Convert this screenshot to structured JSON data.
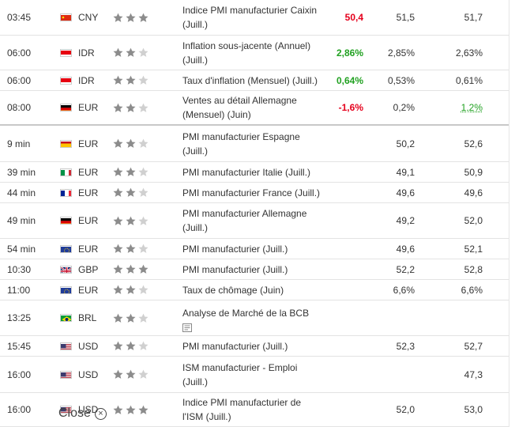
{
  "rows": [
    {
      "time": "03:45",
      "flag": "cn",
      "currency": "CNY",
      "stars": 3,
      "event": [
        "Indice PMI manufacturier Caixin",
        "(Juill.)"
      ],
      "actual": "50,4",
      "actual_color": "red",
      "forecast": "51,5",
      "previous": "51,7",
      "height": 44
    },
    {
      "time": "06:00",
      "flag": "id",
      "currency": "IDR",
      "stars": 2,
      "event": [
        "Inflation sous-jacente (Annuel)",
        "(Juill.)"
      ],
      "actual": "2,86%",
      "actual_color": "green",
      "forecast": "2,85%",
      "previous": "2,63%",
      "height": 43
    },
    {
      "time": "06:00",
      "flag": "id",
      "currency": "IDR",
      "stars": 2,
      "event": [
        "Taux d'inflation (Mensuel) (Juill.)"
      ],
      "actual": "0,64%",
      "actual_color": "green",
      "forecast": "0,53%",
      "previous": "0,61%",
      "height": 25
    },
    {
      "time": "08:00",
      "flag": "de",
      "currency": "EUR",
      "stars": 2,
      "event": [
        "Ventes au détail Allemagne",
        "(Mensuel) (Juin)"
      ],
      "actual": "-1,6%",
      "actual_color": "red",
      "forecast": "0,2%",
      "previous": "1,2%",
      "previous_color": "green",
      "height": 42,
      "divider": true
    },
    {
      "time": "9 min",
      "flag": "es",
      "currency": "EUR",
      "stars": 2,
      "event": [
        "PMI manufacturier Espagne",
        "(Juill.)"
      ],
      "actual": "",
      "forecast": "50,2",
      "previous": "52,6",
      "height": 45
    },
    {
      "time": "39 min",
      "flag": "it",
      "currency": "EUR",
      "stars": 2,
      "event": [
        "PMI manufacturier Italie (Juill.)"
      ],
      "actual": "",
      "forecast": "49,1",
      "previous": "50,9",
      "height": 25
    },
    {
      "time": "44 min",
      "flag": "fr",
      "currency": "EUR",
      "stars": 2,
      "event": [
        "PMI manufacturier France (Juill.)"
      ],
      "actual": "",
      "forecast": "49,6",
      "previous": "49,6",
      "height": 25
    },
    {
      "time": "49 min",
      "flag": "de",
      "currency": "EUR",
      "stars": 2,
      "event": [
        "PMI manufacturier Allemagne",
        "(Juill.)"
      ],
      "actual": "",
      "forecast": "49,2",
      "previous": "52,0",
      "height": 44
    },
    {
      "time": "54 min",
      "flag": "eu",
      "currency": "EUR",
      "stars": 2,
      "event": [
        "PMI manufacturier (Juill.)"
      ],
      "actual": "",
      "forecast": "49,6",
      "previous": "52,1",
      "height": 25
    },
    {
      "time": "10:30",
      "flag": "gb",
      "currency": "GBP",
      "stars": 3,
      "event": [
        "PMI manufacturier (Juill.)"
      ],
      "actual": "",
      "forecast": "52,2",
      "previous": "52,8",
      "height": 25
    },
    {
      "time": "11:00",
      "flag": "eu",
      "currency": "EUR",
      "stars": 2,
      "event": [
        "Taux de chômage (Juin)"
      ],
      "actual": "",
      "forecast": "6,6%",
      "previous": "6,6%",
      "height": 25
    },
    {
      "time": "13:25",
      "flag": "br",
      "currency": "BRL",
      "stars": 2,
      "event": [
        "Analyse de Marché de la BCB"
      ],
      "detail_icon": true,
      "actual": "",
      "forecast": "",
      "previous": "",
      "height": 44
    },
    {
      "time": "15:45",
      "flag": "us",
      "currency": "USD",
      "stars": 2,
      "event": [
        "PMI manufacturier (Juill.)"
      ],
      "actual": "",
      "forecast": "52,3",
      "previous": "52,7",
      "height": 25
    },
    {
      "time": "16:00",
      "flag": "us",
      "currency": "USD",
      "stars": 2,
      "event": [
        "ISM manufacturier - Emploi",
        "(Juill.)"
      ],
      "actual": "",
      "forecast": "",
      "previous": "47,3",
      "height": 45
    },
    {
      "time": "16:00",
      "flag": "us",
      "currency": "USD",
      "stars": 3,
      "event": [
        "Indice PMI manufacturier de",
        "l'ISM (Juill.)"
      ],
      "actual": "",
      "forecast": "52,0",
      "previous": "53,0",
      "height": 42
    }
  ],
  "close_label": "Close",
  "colors": {
    "red": "#e5001c",
    "green": "#21a121",
    "star_on": "#8c8c8c",
    "star_off": "#d0d0d0"
  }
}
